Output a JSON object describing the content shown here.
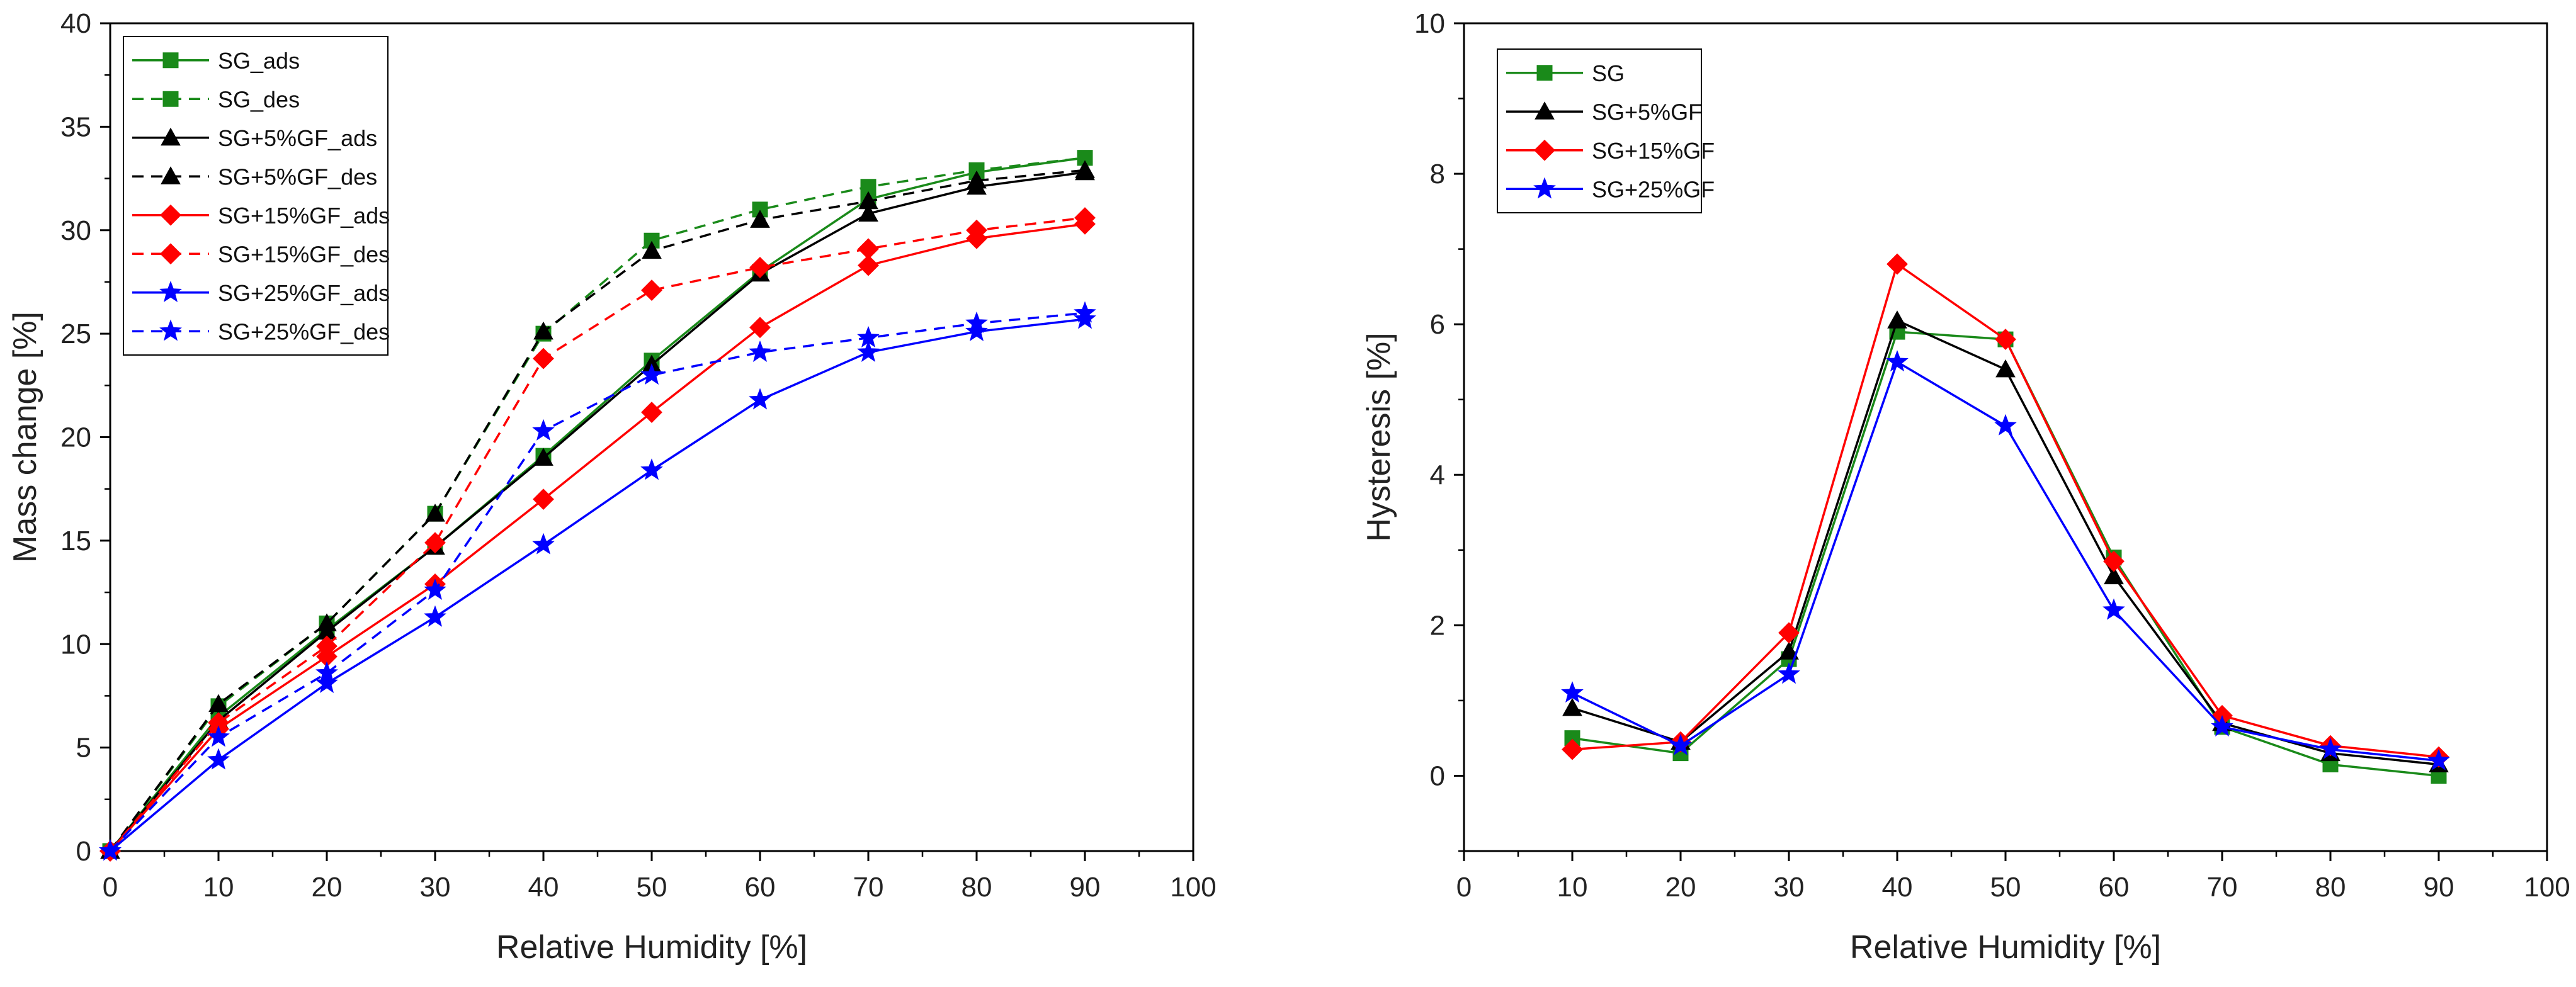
{
  "chart_data": [
    {
      "type": "line",
      "xlabel": "Relative Humidity [%]",
      "ylabel": "Mass change [%]",
      "xlim": [
        0,
        100
      ],
      "ylim": [
        0,
        40
      ],
      "xticks": [
        0,
        10,
        20,
        30,
        40,
        50,
        60,
        70,
        80,
        90,
        100
      ],
      "yticks": [
        0,
        5,
        10,
        15,
        20,
        25,
        30,
        35,
        40
      ],
      "legend_position": "top-left",
      "series": [
        {
          "name": "SG_ads",
          "color": "#1a8a1a",
          "dash": "solid",
          "marker": "square",
          "x": [
            0,
            10,
            20,
            30,
            40,
            50,
            60,
            70,
            80,
            90
          ],
          "y": [
            0,
            6.5,
            10.7,
            14.7,
            19.1,
            23.7,
            28.0,
            31.5,
            32.8,
            33.5
          ]
        },
        {
          "name": "SG_des",
          "color": "#1a8a1a",
          "dash": "dashed",
          "marker": "square",
          "x": [
            0,
            10,
            20,
            30,
            40,
            50,
            60,
            70,
            80,
            90
          ],
          "y": [
            0,
            7.0,
            11.0,
            16.3,
            25.0,
            29.5,
            31.0,
            32.1,
            32.9,
            33.5
          ]
        },
        {
          "name": "SG+5%GF_ads",
          "color": "#000000",
          "dash": "solid",
          "marker": "triangle",
          "x": [
            0,
            10,
            20,
            30,
            40,
            50,
            60,
            70,
            80,
            90
          ],
          "y": [
            0,
            6.3,
            10.6,
            14.7,
            19.0,
            23.5,
            27.9,
            30.8,
            32.1,
            32.8
          ]
        },
        {
          "name": "SG+5%GF_des",
          "color": "#000000",
          "dash": "dashed",
          "marker": "triangle",
          "x": [
            0,
            10,
            20,
            30,
            40,
            50,
            60,
            70,
            80,
            90
          ],
          "y": [
            0,
            7.1,
            11.0,
            16.3,
            25.1,
            29.0,
            30.5,
            31.4,
            32.4,
            32.9
          ]
        },
        {
          "name": "SG+15%GF_ads",
          "color": "#ff0000",
          "dash": "solid",
          "marker": "diamond",
          "x": [
            0,
            10,
            20,
            30,
            40,
            50,
            60,
            70,
            80,
            90
          ],
          "y": [
            0,
            5.9,
            9.4,
            12.9,
            17.0,
            21.2,
            25.3,
            28.3,
            29.6,
            30.3
          ]
        },
        {
          "name": "SG+15%GF_des",
          "color": "#ff0000",
          "dash": "dashed",
          "marker": "diamond",
          "x": [
            0,
            10,
            20,
            30,
            40,
            50,
            60,
            70,
            80,
            90
          ],
          "y": [
            0,
            6.2,
            9.9,
            14.9,
            23.8,
            27.1,
            28.2,
            29.1,
            30.0,
            30.6
          ]
        },
        {
          "name": "SG+25%GF_ads",
          "color": "#0000ff",
          "dash": "solid",
          "marker": "star",
          "x": [
            0,
            10,
            20,
            30,
            40,
            50,
            60,
            70,
            80,
            90
          ],
          "y": [
            0,
            4.4,
            8.1,
            11.3,
            14.8,
            18.4,
            21.8,
            24.1,
            25.1,
            25.7
          ]
        },
        {
          "name": "SG+25%GF_des",
          "color": "#0000ff",
          "dash": "dashed",
          "marker": "star",
          "x": [
            0,
            10,
            20,
            30,
            40,
            50,
            60,
            70,
            80,
            90
          ],
          "y": [
            0,
            5.5,
            8.6,
            12.6,
            20.3,
            23.0,
            24.1,
            24.8,
            25.5,
            26.0
          ]
        }
      ]
    },
    {
      "type": "line",
      "xlabel": "Relative Humidity [%]",
      "ylabel": "Hysteresis [%]",
      "xlim": [
        0,
        100
      ],
      "ylim": [
        -1,
        10
      ],
      "xticks": [
        0,
        10,
        20,
        30,
        40,
        50,
        60,
        70,
        80,
        90,
        100
      ],
      "yticks": [
        0,
        2,
        4,
        6,
        8,
        10
      ],
      "legend_position": "top-left",
      "series": [
        {
          "name": "SG",
          "color": "#1a8a1a",
          "dash": "solid",
          "marker": "square",
          "x": [
            10,
            20,
            30,
            40,
            50,
            60,
            70,
            80,
            90
          ],
          "y": [
            0.5,
            0.3,
            1.55,
            5.9,
            5.8,
            2.9,
            0.65,
            0.15,
            0.0
          ]
        },
        {
          "name": "SG+5%GF",
          "color": "#000000",
          "dash": "solid",
          "marker": "triangle",
          "x": [
            10,
            20,
            30,
            40,
            50,
            60,
            70,
            80,
            90
          ],
          "y": [
            0.9,
            0.45,
            1.65,
            6.05,
            5.4,
            2.65,
            0.7,
            0.3,
            0.15
          ]
        },
        {
          "name": "SG+15%GF",
          "color": "#ff0000",
          "dash": "solid",
          "marker": "diamond",
          "x": [
            10,
            20,
            30,
            40,
            50,
            60,
            70,
            80,
            90
          ],
          "y": [
            0.35,
            0.45,
            1.9,
            6.8,
            5.8,
            2.85,
            0.8,
            0.4,
            0.25
          ]
        },
        {
          "name": "SG+25%GF",
          "color": "#0000ff",
          "dash": "solid",
          "marker": "star",
          "x": [
            10,
            20,
            30,
            40,
            50,
            60,
            70,
            80,
            90
          ],
          "y": [
            1.1,
            0.4,
            1.35,
            5.5,
            4.65,
            2.2,
            0.65,
            0.35,
            0.2
          ]
        }
      ]
    }
  ]
}
